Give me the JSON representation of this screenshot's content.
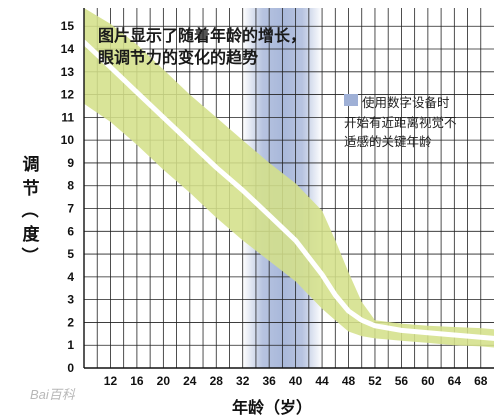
{
  "chart_data": {
    "type": "area",
    "title_lines": [
      "图片显示了随着年龄的增长，",
      "眼调节力的变化的趋势"
    ],
    "xlabel": "年龄（岁）",
    "ylabel": "调节（度）",
    "ylabel_chars": [
      "调",
      "节",
      "（",
      "度",
      "）"
    ],
    "xlim": [
      8,
      70
    ],
    "ylim": [
      0,
      15.8
    ],
    "x_ticks": [
      "12",
      "16",
      "20",
      "24",
      "28",
      "32",
      "36",
      "40",
      "44",
      "48",
      "52",
      "56",
      "60",
      "64",
      "68"
    ],
    "y_ticks": [
      "0",
      "1",
      "2",
      "3",
      "4",
      "5",
      "6",
      "7",
      "8",
      "9",
      "10",
      "11",
      "12",
      "13",
      "14",
      "15"
    ],
    "grid": true,
    "highlight_band": {
      "x_start": 32,
      "x_end": 44,
      "color": "#9fb0d6"
    },
    "legend": {
      "position": "right",
      "lines": [
        "使用数字设备时",
        "开始有近距离视觉不",
        "适感的关键年龄"
      ],
      "swatch_color": "#9fb0d6"
    },
    "series": [
      {
        "role": "mean",
        "color": "#ffffff",
        "x": [
          8,
          12,
          16,
          20,
          24,
          28,
          32,
          36,
          40,
          44,
          46,
          48,
          50,
          52,
          56,
          60,
          64,
          68,
          70
        ],
        "y": [
          14.3,
          13.2,
          12.1,
          11.0,
          9.9,
          8.8,
          7.8,
          6.7,
          5.6,
          4.1,
          3.2,
          2.5,
          2.1,
          1.85,
          1.65,
          1.55,
          1.45,
          1.35,
          1.3
        ]
      },
      {
        "role": "range",
        "color": "#d4e08a",
        "x": [
          8,
          12,
          16,
          20,
          24,
          28,
          32,
          36,
          40,
          44,
          46,
          48,
          50,
          52,
          56,
          60,
          64,
          68,
          70
        ],
        "y_upper": [
          15.8,
          15.1,
          14.2,
          13.1,
          12.0,
          11.0,
          10.0,
          9.0,
          8.1,
          6.9,
          5.6,
          4.2,
          2.9,
          2.1,
          1.95,
          1.85,
          1.8,
          1.75,
          1.7
        ],
        "y_lower": [
          11.6,
          10.8,
          9.8,
          8.7,
          7.7,
          6.6,
          5.6,
          4.7,
          3.8,
          2.6,
          2.1,
          1.6,
          1.4,
          1.3,
          1.2,
          1.1,
          1.0,
          0.95,
          0.9
        ]
      }
    ],
    "watermark": "Bai百科"
  }
}
